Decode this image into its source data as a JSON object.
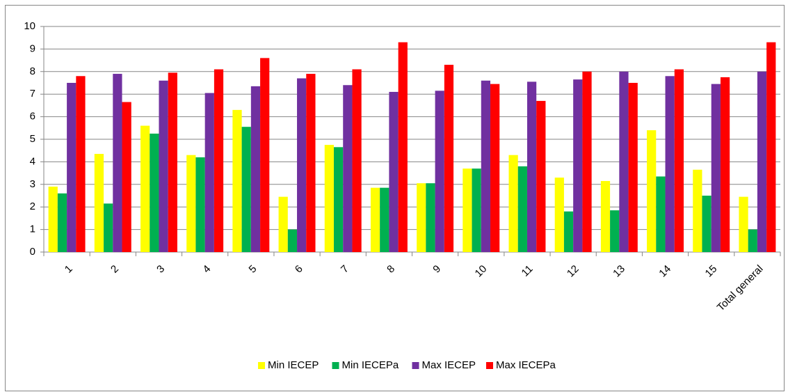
{
  "chart_data": {
    "type": "bar",
    "categories": [
      "1",
      "2",
      "3",
      "4",
      "5",
      "6",
      "7",
      "8",
      "9",
      "10",
      "11",
      "12",
      "13",
      "14",
      "15",
      "Total general"
    ],
    "series": [
      {
        "name": "Min IECEP",
        "color": "#ffff00",
        "values": [
          2.9,
          4.35,
          5.6,
          4.3,
          6.3,
          2.45,
          4.75,
          2.85,
          3.05,
          3.7,
          4.3,
          3.3,
          3.15,
          5.4,
          3.65,
          2.45
        ]
      },
      {
        "name": "Min IECEPa",
        "color": "#00b050",
        "values": [
          2.6,
          2.15,
          5.25,
          4.2,
          5.55,
          1.0,
          4.65,
          2.85,
          3.05,
          3.7,
          3.8,
          1.8,
          1.85,
          3.35,
          2.5,
          1.0
        ]
      },
      {
        "name": "Max IECEP",
        "color": "#7030a0",
        "values": [
          7.5,
          7.9,
          7.6,
          7.05,
          7.35,
          7.7,
          7.4,
          7.1,
          7.15,
          7.6,
          7.55,
          7.65,
          8.0,
          7.8,
          7.45,
          8.0
        ]
      },
      {
        "name": "Max IECEPa",
        "color": "#ff0000",
        "values": [
          7.8,
          6.65,
          7.95,
          8.1,
          8.6,
          7.9,
          8.1,
          9.3,
          8.3,
          7.45,
          6.7,
          8.0,
          7.5,
          8.1,
          7.75,
          9.3
        ]
      }
    ],
    "ylim": [
      0,
      10
    ],
    "yticks": [
      0,
      1,
      2,
      3,
      4,
      5,
      6,
      7,
      8,
      9,
      10
    ],
    "grid": true,
    "legend": "bottom"
  }
}
